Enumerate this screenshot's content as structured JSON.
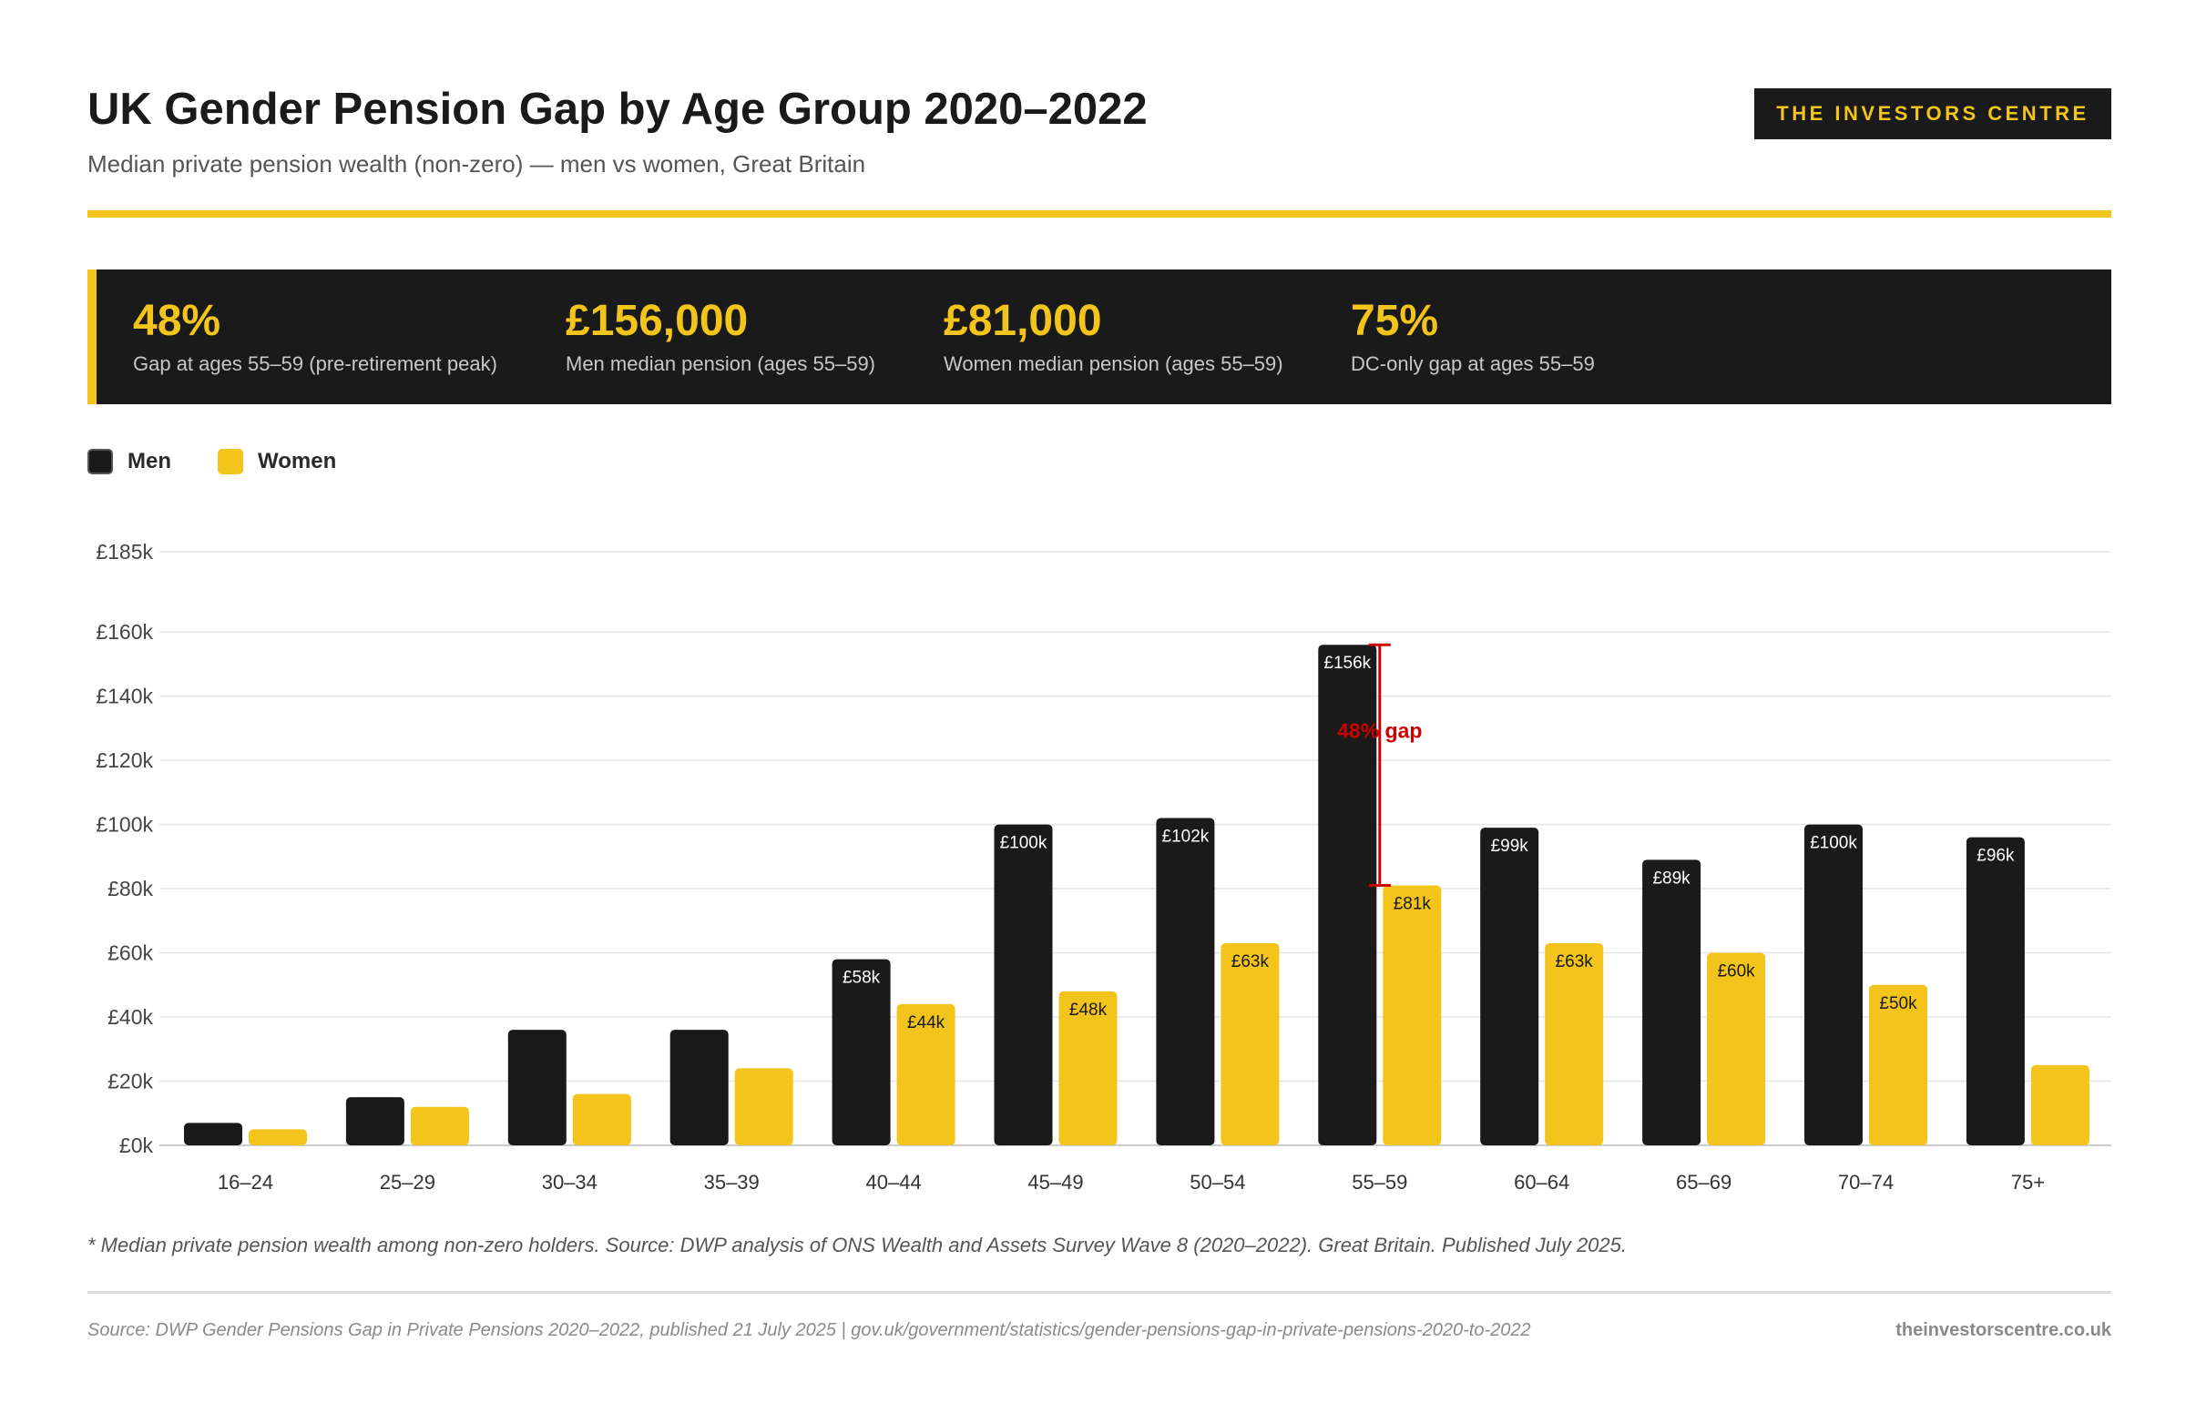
{
  "header": {
    "title": "UK Gender Pension Gap by Age Group 2020–2022",
    "subtitle": "Median private pension wealth (non-zero) — men vs women, Great Britain",
    "brand": "THE INVESTORS CENTRE"
  },
  "stats": [
    {
      "value": "48%",
      "label": "Gap at ages 55–59 (pre-retirement peak)"
    },
    {
      "value": "£156,000",
      "label": "Men median pension (ages 55–59)"
    },
    {
      "value": "£81,000",
      "label": "Women median pension (ages 55–59)"
    },
    {
      "value": "75%",
      "label": "DC-only gap at ages 55–59"
    }
  ],
  "legend": [
    {
      "label": "Men",
      "color": "#1a1a1a"
    },
    {
      "label": "Women",
      "color": "#f2c41c"
    }
  ],
  "colors": {
    "men": "#1a1a1a",
    "women": "#f2c41c",
    "accent": "#f2c41c",
    "gap": "#cc0000"
  },
  "chart_data": {
    "type": "bar",
    "categories": [
      "16–24",
      "25–29",
      "30–34",
      "35–39",
      "40–44",
      "45–49",
      "50–54",
      "55–59",
      "60–64",
      "65–69",
      "70–74",
      "75+"
    ],
    "series": [
      {
        "name": "Men",
        "values": [
          7000,
          15000,
          36000,
          36000,
          58000,
          100000,
          102000,
          156000,
          99000,
          89000,
          100000,
          96000
        ],
        "data_labels": [
          "",
          "",
          "",
          "",
          "£58k",
          "£100k",
          "£102k",
          "£156k",
          "£99k",
          "£89k",
          "£100k",
          "£96k"
        ]
      },
      {
        "name": "Women",
        "values": [
          5000,
          12000,
          16000,
          24000,
          44000,
          48000,
          63000,
          81000,
          63000,
          60000,
          50000,
          25000
        ],
        "data_labels": [
          "",
          "",
          "",
          "",
          "£44k",
          "£48k",
          "£63k",
          "£81k",
          "£63k",
          "£60k",
          "£50k",
          ""
        ]
      }
    ],
    "y_ticks": [
      {
        "value": 0,
        "label": "£0k"
      },
      {
        "value": 20000,
        "label": "£20k"
      },
      {
        "value": 40000,
        "label": "£40k"
      },
      {
        "value": 60000,
        "label": "£60k"
      },
      {
        "value": 80000,
        "label": "£80k"
      },
      {
        "value": 100000,
        "label": "£100k"
      },
      {
        "value": 120000,
        "label": "£120k"
      },
      {
        "value": 140000,
        "label": "£140k"
      },
      {
        "value": 160000,
        "label": "£160k"
      },
      {
        "value": 185000,
        "label": "£185k"
      }
    ],
    "ylim": [
      0,
      185000
    ],
    "grid": true,
    "legend": "top-left",
    "annotation": {
      "category": "55–59",
      "from": 156000,
      "to": 81000,
      "label": "48% gap"
    }
  },
  "footer": {
    "footnote": "* Median private pension wealth among non-zero holders. Source: DWP analysis of ONS Wealth and Assets Survey Wave 8 (2020–2022). Great Britain. Published July 2025.",
    "source": "Source: DWP Gender Pensions Gap in Private Pensions 2020–2022, published 21 July 2025 | gov.uk/government/statistics/gender-pensions-gap-in-private-pensions-2020-to-2022",
    "site": "theinvestorscentre.co.uk"
  }
}
